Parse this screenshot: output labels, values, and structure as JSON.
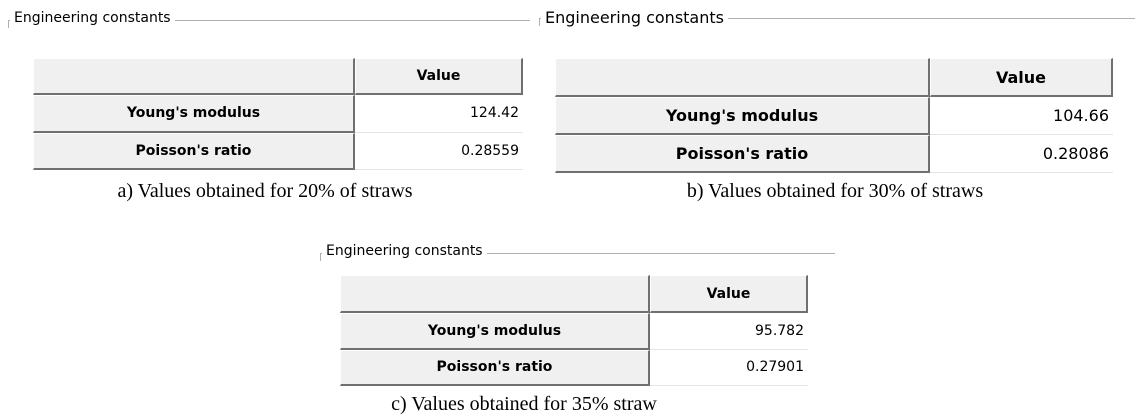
{
  "panels": [
    {
      "group_title": "Engineering constants",
      "header": "Value",
      "rows": [
        [
          "Young's modulus",
          "124.42"
        ],
        [
          "Poisson's ratio",
          "0.28559"
        ]
      ],
      "caption": "a) Values obtained for 20% of straws"
    },
    {
      "group_title": "Engineering constants",
      "header": "Value",
      "rows": [
        [
          "Young's modulus",
          "104.66"
        ],
        [
          "Poisson's ratio",
          "0.28086"
        ]
      ],
      "caption": "b) Values obtained for 30% of straws"
    },
    {
      "group_title": "Engineering constants",
      "header": "Value",
      "rows": [
        [
          "Young's modulus",
          "95.782"
        ],
        [
          "Poisson's ratio",
          "0.27901"
        ]
      ],
      "caption": "c) Values obtained for 35% straw"
    }
  ]
}
